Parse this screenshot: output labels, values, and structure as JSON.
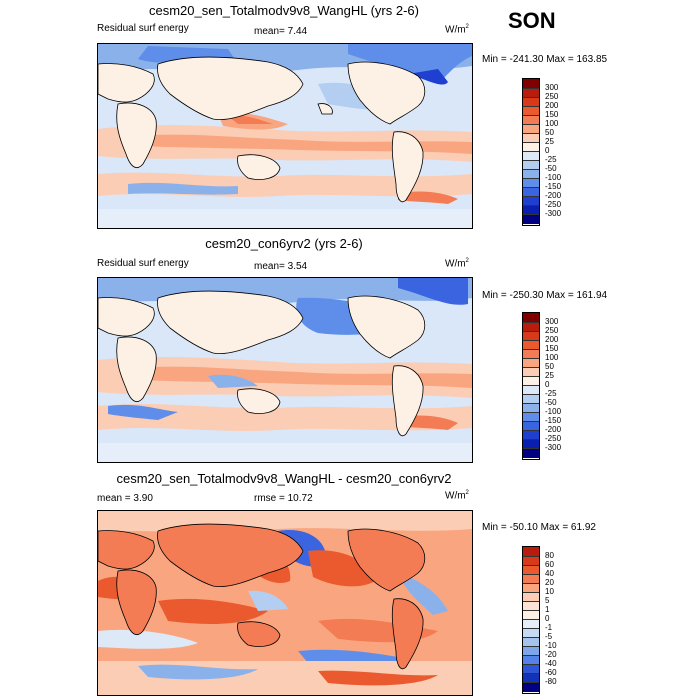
{
  "season": "SON",
  "panels": [
    {
      "title": "cesm20_sen_Totalmodv9v8_WangHL (yrs 2-6)",
      "left_label": "Residual surf energy",
      "center_label": "mean=  7.44",
      "units": "W/m",
      "units_sup": "2",
      "minmax": "Min = -241.30 Max = 163.85"
    },
    {
      "title": "cesm20_con6yrv2 (yrs 2-6)",
      "left_label": "Residual surf energy",
      "center_label": "mean=  3.54",
      "units": "W/m",
      "units_sup": "2",
      "minmax": "Min = -250.30 Max = 161.94"
    },
    {
      "title": "cesm20_sen_Totalmodv9v8_WangHL - cesm20_con6yrv2",
      "left_label": "mean =  3.90",
      "center_label": "rmse =  10.72",
      "units": "W/m",
      "units_sup": "2",
      "minmax": "Min = -50.10 Max =  61.92"
    }
  ],
  "chart_data": [
    {
      "type": "heatmap",
      "title": "cesm20_sen_Totalmodv9v8_WangHL (yrs 2-6)",
      "variable": "Residual surf energy",
      "units": "W/m2",
      "mean": 7.44,
      "min": -241.3,
      "max": 163.85,
      "colorbar_levels": [
        "300",
        "250",
        "200",
        "150",
        "100",
        "50",
        "25",
        "0",
        "-25",
        "-50",
        "-100",
        "-150",
        "-200",
        "-250",
        "-300"
      ],
      "colorbar_colors": [
        "#800000",
        "#b71c0e",
        "#d73a1a",
        "#eb5a2e",
        "#f47c55",
        "#f9a680",
        "#fbcdb4",
        "#fdf0e4",
        "#dde9f7",
        "#b3cef0",
        "#8bb1ea",
        "#5f8eea",
        "#3b64e0",
        "#1f3fd0",
        "#0a1fb0",
        "#000080"
      ]
    },
    {
      "type": "heatmap",
      "title": "cesm20_con6yrv2 (yrs 2-6)",
      "variable": "Residual surf energy",
      "units": "W/m2",
      "mean": 3.54,
      "min": -250.3,
      "max": 161.94,
      "colorbar_levels": [
        "300",
        "250",
        "200",
        "150",
        "100",
        "50",
        "25",
        "0",
        "-25",
        "-50",
        "-100",
        "-150",
        "-200",
        "-250",
        "-300"
      ],
      "colorbar_colors": [
        "#800000",
        "#b71c0e",
        "#d73a1a",
        "#eb5a2e",
        "#f47c55",
        "#f9a680",
        "#fbcdb4",
        "#fdf0e4",
        "#dde9f7",
        "#b3cef0",
        "#8bb1ea",
        "#5f8eea",
        "#3b64e0",
        "#1f3fd0",
        "#0a1fb0",
        "#000080"
      ]
    },
    {
      "type": "heatmap",
      "title": "cesm20_sen_Totalmodv9v8_WangHL - cesm20_con6yrv2",
      "units": "W/m2",
      "mean": 3.9,
      "rmse": 10.72,
      "min": -50.1,
      "max": 61.92,
      "colorbar_levels": [
        "80",
        "60",
        "40",
        "20",
        "10",
        "5",
        "1",
        "0",
        "-1",
        "-5",
        "-10",
        "-20",
        "-40",
        "-60",
        "-80"
      ],
      "colorbar_colors": [
        "#b71c0e",
        "#d73a1a",
        "#eb5a2e",
        "#f47c55",
        "#f9a680",
        "#fbcdb4",
        "#fde3d3",
        "#fdf0e4",
        "#e6eefa",
        "#c7daf4",
        "#a6c3ee",
        "#7ea6ea",
        "#5582e6",
        "#2f55d6",
        "#1232b8",
        "#000080"
      ]
    }
  ]
}
